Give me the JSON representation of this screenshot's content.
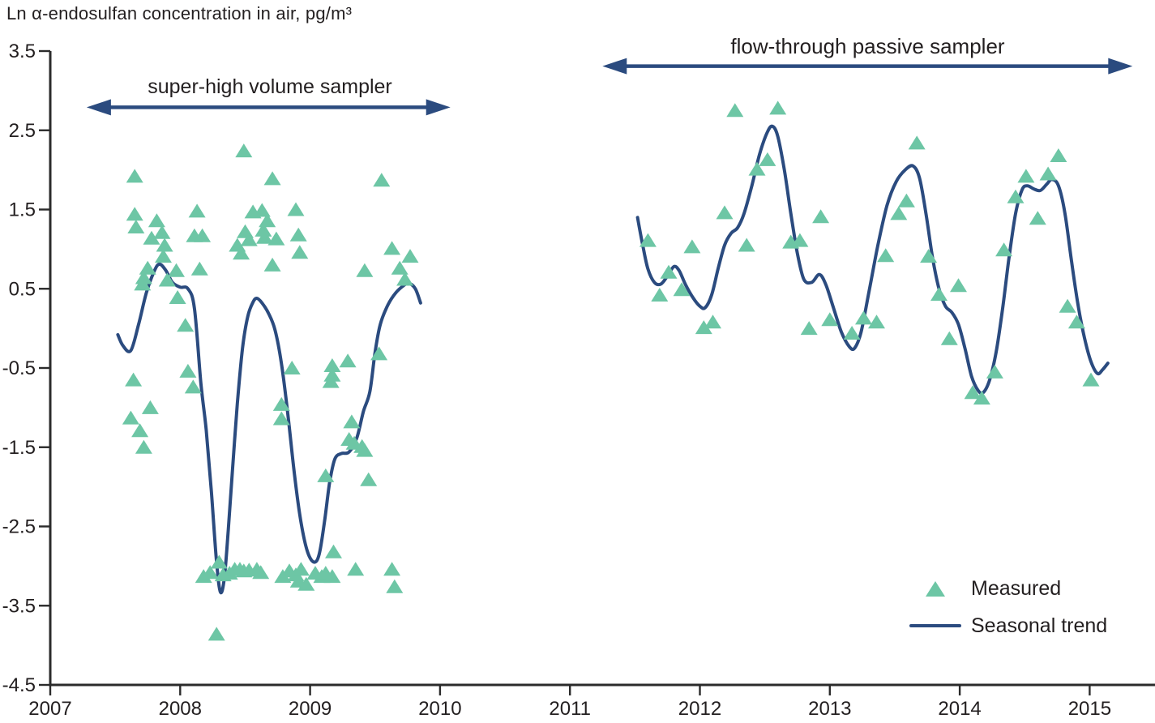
{
  "page_title": "Ln α-endosulfan concentration in air, pg/m³",
  "colors": {
    "measured_teal": "#6dc6a5",
    "trend_navy": "#2b4b7f",
    "axis_dark": "#2b2b2b",
    "text_dark": "#231f20"
  },
  "chart_data": {
    "type": "scatter",
    "title": "Ln α-endosulfan concentration in air, pg/m³",
    "xlabel": "",
    "ylabel": "Ln α-endosulfan concentration in air, pg/m³",
    "xlim": [
      2007,
      2015.5
    ],
    "ylim": [
      -4.5,
      3.5
    ],
    "x_ticks": [
      2007,
      2008,
      2009,
      2010,
      2011,
      2012,
      2013,
      2014,
      2015
    ],
    "y_ticks": [
      3.5,
      2.5,
      1.5,
      0.5,
      -0.5,
      -1.5,
      -2.5,
      -3.5,
      -4.5
    ],
    "grid": false,
    "legend_position": "lower right",
    "legend": [
      {
        "label": "Measured",
        "marker": "triangle",
        "color": "#6dc6a5"
      },
      {
        "label": "Seasonal trend",
        "marker": "line",
        "color": "#2b4b7f"
      }
    ],
    "annotations": [
      {
        "label": "super-high volume sampler",
        "x_start": 2007.28,
        "x_end": 2010.08,
        "y": 2.79,
        "style": "double-arrow"
      },
      {
        "label": "flow-through passive sampler",
        "x_start": 2011.25,
        "x_end": 2015.33,
        "y": 3.31,
        "style": "double-arrow"
      }
    ],
    "series": [
      {
        "name": "Measured",
        "type": "scatter",
        "marker": "triangle",
        "color": "#6dc6a5",
        "points": [
          [
            2007.62,
            -1.14
          ],
          [
            2007.64,
            -0.66
          ],
          [
            2007.65,
            1.91
          ],
          [
            2007.65,
            1.43
          ],
          [
            2007.66,
            1.27
          ],
          [
            2007.69,
            -1.3
          ],
          [
            2007.71,
            0.55
          ],
          [
            2007.72,
            0.63
          ],
          [
            2007.72,
            -1.51
          ],
          [
            2007.75,
            0.75
          ],
          [
            2007.77,
            -1.01
          ],
          [
            2007.78,
            1.13
          ],
          [
            2007.82,
            1.35
          ],
          [
            2007.86,
            1.2
          ],
          [
            2007.87,
            0.9
          ],
          [
            2007.88,
            1.04
          ],
          [
            2007.9,
            0.6
          ],
          [
            2007.97,
            0.72
          ],
          [
            2007.98,
            0.38
          ],
          [
            2008.04,
            0.03
          ],
          [
            2008.06,
            -0.55
          ],
          [
            2008.1,
            -0.75
          ],
          [
            2008.11,
            1.16
          ],
          [
            2008.13,
            1.47
          ],
          [
            2008.15,
            0.74
          ],
          [
            2008.17,
            1.16
          ],
          [
            2008.18,
            -3.14
          ],
          [
            2008.23,
            -3.09
          ],
          [
            2008.28,
            -3.87
          ],
          [
            2008.3,
            -2.96
          ],
          [
            2008.33,
            -3.12
          ],
          [
            2008.38,
            -3.1
          ],
          [
            2008.42,
            -3.05
          ],
          [
            2008.44,
            1.04
          ],
          [
            2008.46,
            -3.05
          ],
          [
            2008.47,
            0.94
          ],
          [
            2008.49,
            2.23
          ],
          [
            2008.49,
            -3.07
          ],
          [
            2008.5,
            1.21
          ],
          [
            2008.53,
            1.11
          ],
          [
            2008.53,
            -3.06
          ],
          [
            2008.56,
            1.46
          ],
          [
            2008.59,
            -3.05
          ],
          [
            2008.62,
            -3.09
          ],
          [
            2008.63,
            1.48
          ],
          [
            2008.64,
            1.23
          ],
          [
            2008.65,
            1.14
          ],
          [
            2008.67,
            1.35
          ],
          [
            2008.71,
            1.88
          ],
          [
            2008.71,
            0.79
          ],
          [
            2008.74,
            1.12
          ],
          [
            2008.78,
            -0.97
          ],
          [
            2008.78,
            -1.15
          ],
          [
            2008.79,
            -3.14
          ],
          [
            2008.84,
            -3.07
          ],
          [
            2008.86,
            -0.51
          ],
          [
            2008.89,
            1.49
          ],
          [
            2008.89,
            -3.12
          ],
          [
            2008.91,
            1.17
          ],
          [
            2008.91,
            -3.2
          ],
          [
            2008.92,
            0.95
          ],
          [
            2008.93,
            -3.05
          ],
          [
            2008.97,
            -3.24
          ],
          [
            2009.04,
            -3.1
          ],
          [
            2009.09,
            -3.14
          ],
          [
            2009.12,
            -1.87
          ],
          [
            2009.12,
            -3.1
          ],
          [
            2009.16,
            -0.68
          ],
          [
            2009.17,
            -0.48
          ],
          [
            2009.17,
            -0.6
          ],
          [
            2009.17,
            -3.14
          ],
          [
            2009.18,
            -2.83
          ],
          [
            2009.29,
            -0.42
          ],
          [
            2009.3,
            -1.41
          ],
          [
            2009.32,
            -1.19
          ],
          [
            2009.34,
            -1.46
          ],
          [
            2009.35,
            -3.05
          ],
          [
            2009.4,
            -1.5
          ],
          [
            2009.42,
            0.72
          ],
          [
            2009.42,
            -1.55
          ],
          [
            2009.45,
            -1.92
          ],
          [
            2009.53,
            -0.33
          ],
          [
            2009.55,
            1.86
          ],
          [
            2009.63,
            1.0
          ],
          [
            2009.63,
            -3.05
          ],
          [
            2009.65,
            -3.27
          ],
          [
            2009.69,
            0.75
          ],
          [
            2009.73,
            0.61
          ],
          [
            2009.77,
            0.9
          ],
          [
            2011.6,
            1.1
          ],
          [
            2011.69,
            0.41
          ],
          [
            2011.76,
            0.7
          ],
          [
            2011.86,
            0.48
          ],
          [
            2011.94,
            1.02
          ],
          [
            2012.03,
            0.0
          ],
          [
            2012.1,
            0.07
          ],
          [
            2012.19,
            1.45
          ],
          [
            2012.27,
            2.74
          ],
          [
            2012.36,
            1.04
          ],
          [
            2012.44,
            2.0
          ],
          [
            2012.52,
            2.12
          ],
          [
            2012.6,
            2.77
          ],
          [
            2012.7,
            1.08
          ],
          [
            2012.77,
            1.1
          ],
          [
            2012.84,
            -0.01
          ],
          [
            2012.93,
            1.4
          ],
          [
            2013.0,
            0.1
          ],
          [
            2013.17,
            -0.07
          ],
          [
            2013.26,
            0.12
          ],
          [
            2013.36,
            0.07
          ],
          [
            2013.43,
            0.91
          ],
          [
            2013.53,
            1.44
          ],
          [
            2013.59,
            1.6
          ],
          [
            2013.67,
            2.33
          ],
          [
            2013.76,
            0.9
          ],
          [
            2013.84,
            0.42
          ],
          [
            2013.92,
            -0.14
          ],
          [
            2013.99,
            0.53
          ],
          [
            2014.1,
            -0.82
          ],
          [
            2014.17,
            -0.89
          ],
          [
            2014.27,
            -0.56
          ],
          [
            2014.34,
            0.98
          ],
          [
            2014.43,
            1.65
          ],
          [
            2014.51,
            1.91
          ],
          [
            2014.6,
            1.38
          ],
          [
            2014.68,
            1.94
          ],
          [
            2014.76,
            2.17
          ],
          [
            2014.83,
            0.27
          ],
          [
            2014.9,
            0.07
          ],
          [
            2015.01,
            -0.66
          ]
        ]
      },
      {
        "name": "Seasonal trend",
        "type": "line",
        "color": "#2b4b7f",
        "segments": [
          [
            [
              2007.52,
              -0.08
            ],
            [
              2007.56,
              -0.22
            ],
            [
              2007.62,
              -0.28
            ],
            [
              2007.68,
              0.05
            ],
            [
              2007.74,
              0.45
            ],
            [
              2007.8,
              0.72
            ],
            [
              2007.84,
              0.81
            ],
            [
              2007.89,
              0.73
            ],
            [
              2007.94,
              0.58
            ],
            [
              2008.0,
              0.52
            ],
            [
              2008.06,
              0.5
            ],
            [
              2008.11,
              0.25
            ],
            [
              2008.16,
              -0.7
            ],
            [
              2008.2,
              -1.28
            ],
            [
              2008.24,
              -2.06
            ],
            [
              2008.28,
              -2.95
            ],
            [
              2008.31,
              -3.33
            ],
            [
              2008.34,
              -3.15
            ],
            [
              2008.37,
              -2.55
            ],
            [
              2008.4,
              -1.85
            ],
            [
              2008.44,
              -0.95
            ],
            [
              2008.48,
              -0.25
            ],
            [
              2008.52,
              0.15
            ],
            [
              2008.56,
              0.33
            ],
            [
              2008.59,
              0.38
            ],
            [
              2008.63,
              0.32
            ],
            [
              2008.68,
              0.19
            ],
            [
              2008.73,
              -0.02
            ],
            [
              2008.78,
              -0.45
            ],
            [
              2008.83,
              -1.1
            ],
            [
              2008.88,
              -1.85
            ],
            [
              2008.93,
              -2.45
            ],
            [
              2008.98,
              -2.82
            ],
            [
              2009.03,
              -2.95
            ],
            [
              2009.07,
              -2.85
            ],
            [
              2009.11,
              -2.45
            ],
            [
              2009.15,
              -1.95
            ],
            [
              2009.19,
              -1.65
            ],
            [
              2009.24,
              -1.58
            ],
            [
              2009.3,
              -1.56
            ],
            [
              2009.36,
              -1.38
            ],
            [
              2009.41,
              -1.05
            ],
            [
              2009.46,
              -0.8
            ],
            [
              2009.5,
              -0.3
            ],
            [
              2009.54,
              0.05
            ],
            [
              2009.6,
              0.3
            ],
            [
              2009.66,
              0.45
            ],
            [
              2009.72,
              0.54
            ],
            [
              2009.76,
              0.57
            ],
            [
              2009.81,
              0.5
            ],
            [
              2009.85,
              0.32
            ]
          ],
          [
            [
              2011.52,
              1.4
            ],
            [
              2011.56,
              1.05
            ],
            [
              2011.6,
              0.75
            ],
            [
              2011.65,
              0.58
            ],
            [
              2011.7,
              0.56
            ],
            [
              2011.75,
              0.66
            ],
            [
              2011.8,
              0.78
            ],
            [
              2011.84,
              0.73
            ],
            [
              2011.89,
              0.55
            ],
            [
              2011.95,
              0.38
            ],
            [
              2012.0,
              0.28
            ],
            [
              2012.04,
              0.26
            ],
            [
              2012.09,
              0.42
            ],
            [
              2012.14,
              0.75
            ],
            [
              2012.19,
              1.05
            ],
            [
              2012.24,
              1.2
            ],
            [
              2012.29,
              1.27
            ],
            [
              2012.34,
              1.45
            ],
            [
              2012.4,
              1.8
            ],
            [
              2012.46,
              2.2
            ],
            [
              2012.52,
              2.48
            ],
            [
              2012.56,
              2.55
            ],
            [
              2012.6,
              2.42
            ],
            [
              2012.65,
              2.0
            ],
            [
              2012.7,
              1.45
            ],
            [
              2012.75,
              0.95
            ],
            [
              2012.8,
              0.62
            ],
            [
              2012.86,
              0.58
            ],
            [
              2012.92,
              0.68
            ],
            [
              2012.97,
              0.55
            ],
            [
              2013.03,
              0.25
            ],
            [
              2013.09,
              -0.05
            ],
            [
              2013.15,
              -0.23
            ],
            [
              2013.19,
              -0.25
            ],
            [
              2013.24,
              -0.05
            ],
            [
              2013.3,
              0.45
            ],
            [
              2013.37,
              1.05
            ],
            [
              2013.44,
              1.55
            ],
            [
              2013.51,
              1.85
            ],
            [
              2013.58,
              2.0
            ],
            [
              2013.64,
              2.05
            ],
            [
              2013.69,
              1.9
            ],
            [
              2013.74,
              1.45
            ],
            [
              2013.79,
              0.9
            ],
            [
              2013.84,
              0.5
            ],
            [
              2013.89,
              0.28
            ],
            [
              2013.94,
              0.2
            ],
            [
              2013.99,
              0.05
            ],
            [
              2014.04,
              -0.25
            ],
            [
              2014.09,
              -0.6
            ],
            [
              2014.14,
              -0.78
            ],
            [
              2014.18,
              -0.81
            ],
            [
              2014.23,
              -0.65
            ],
            [
              2014.28,
              -0.3
            ],
            [
              2014.33,
              0.25
            ],
            [
              2014.38,
              0.9
            ],
            [
              2014.43,
              1.45
            ],
            [
              2014.48,
              1.75
            ],
            [
              2014.52,
              1.8
            ],
            [
              2014.57,
              1.76
            ],
            [
              2014.62,
              1.74
            ],
            [
              2014.67,
              1.82
            ],
            [
              2014.71,
              1.88
            ],
            [
              2014.76,
              1.8
            ],
            [
              2014.81,
              1.45
            ],
            [
              2014.86,
              0.85
            ],
            [
              2014.91,
              0.3
            ],
            [
              2014.96,
              -0.12
            ],
            [
              2015.01,
              -0.42
            ],
            [
              2015.06,
              -0.57
            ],
            [
              2015.1,
              -0.52
            ],
            [
              2015.14,
              -0.44
            ]
          ]
        ]
      }
    ]
  }
}
